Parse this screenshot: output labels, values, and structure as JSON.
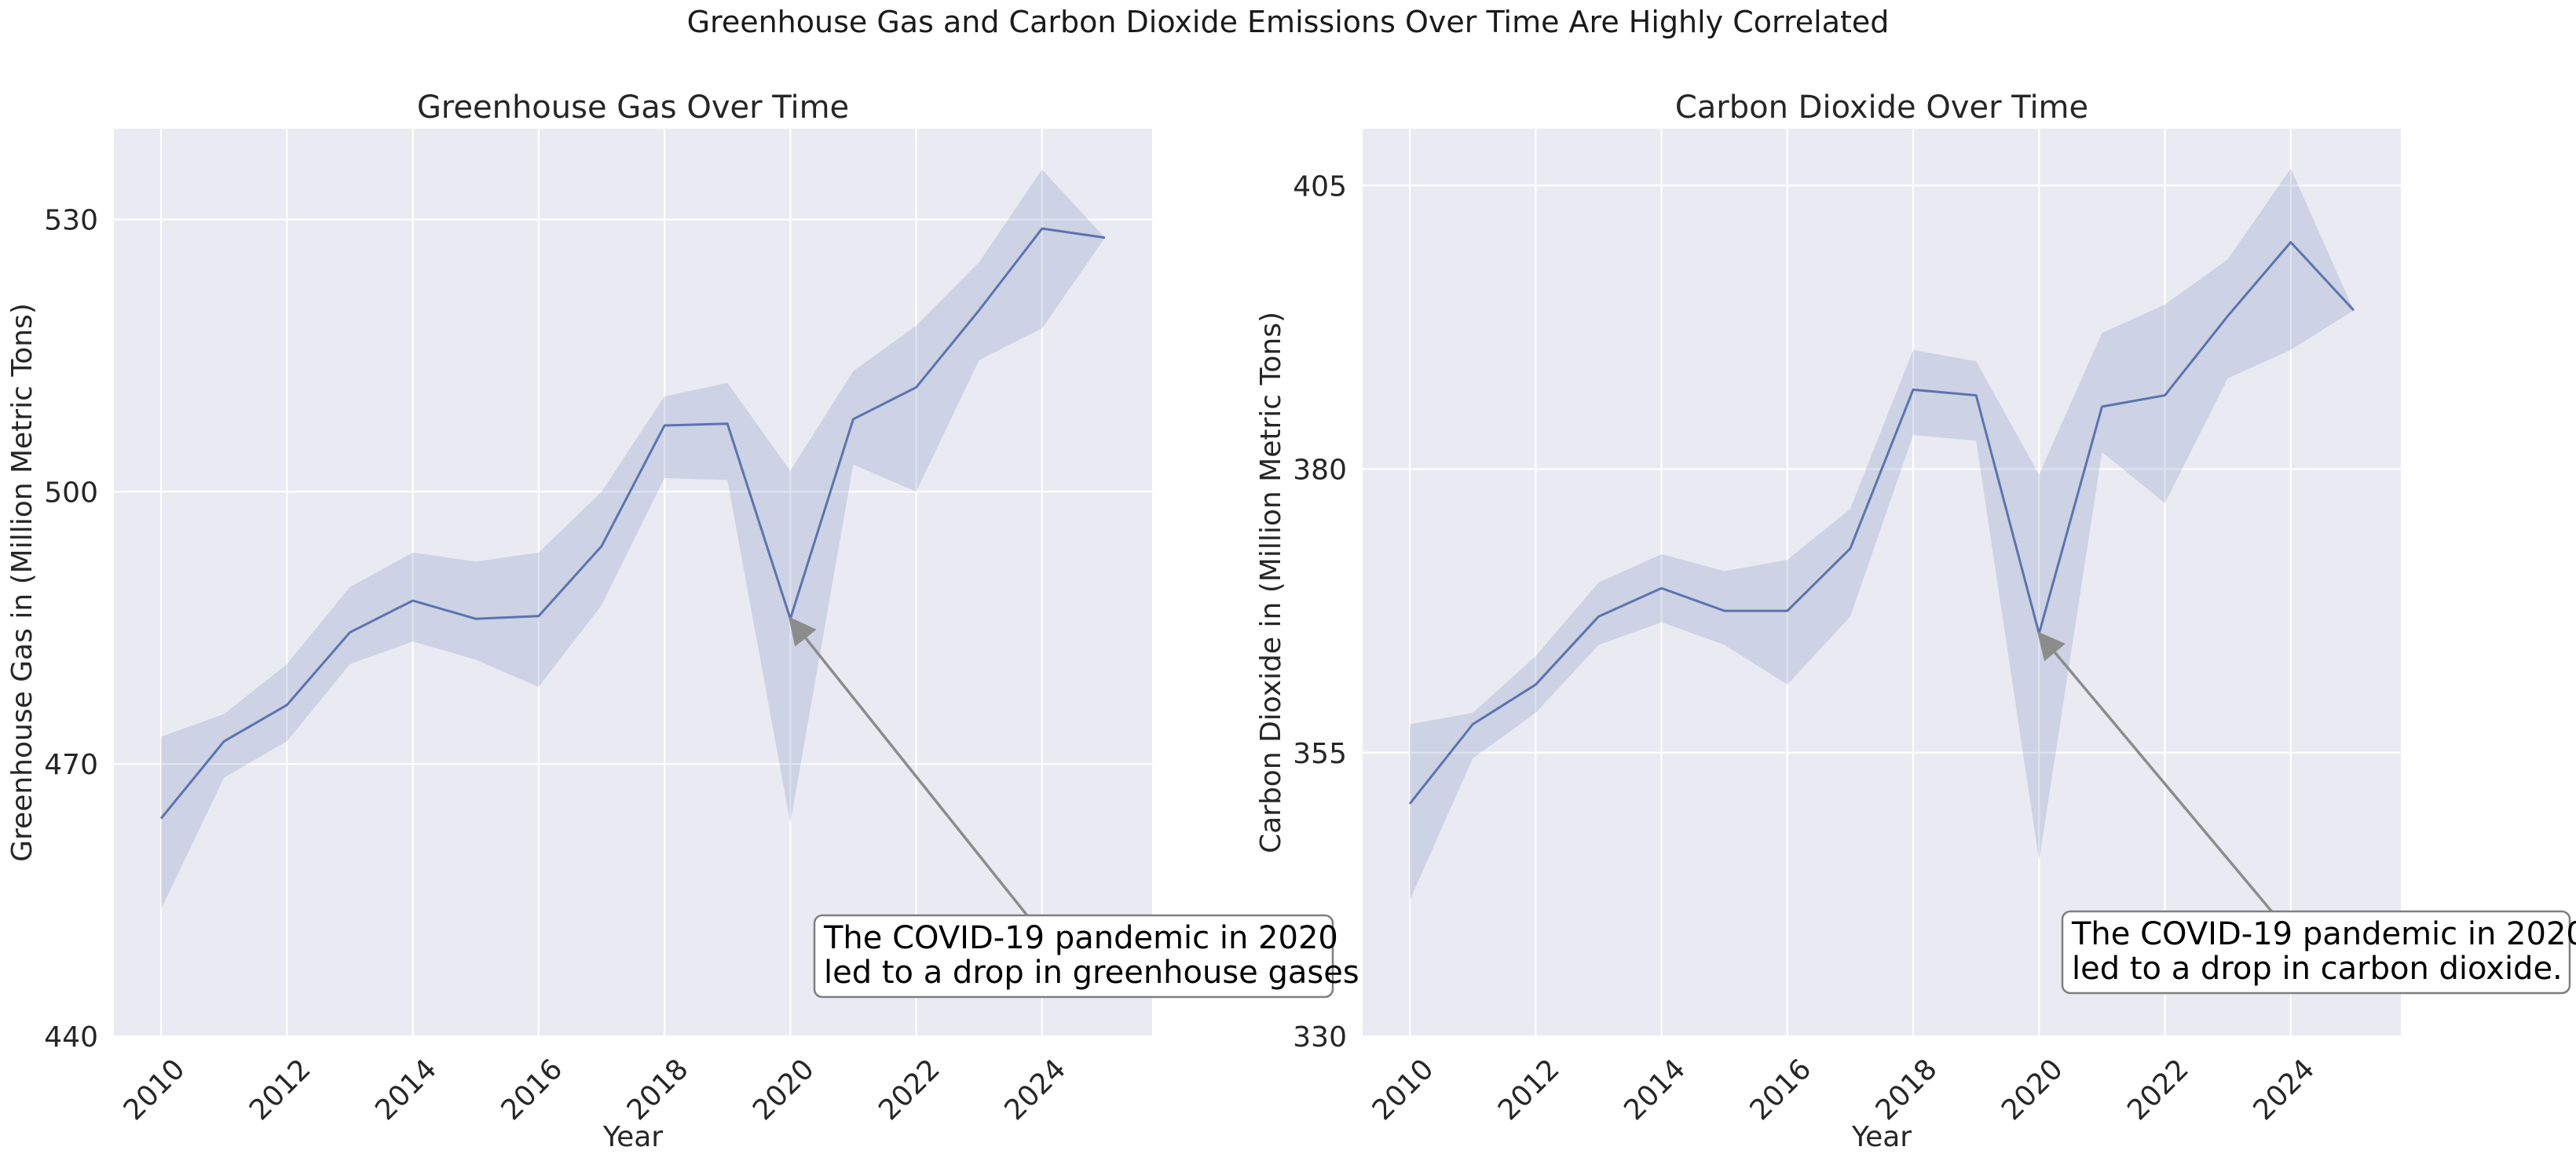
{
  "figure": {
    "suptitle": "Greenhouse Gas and Carbon Dioxide Emissions Over Time Are Highly Correlated"
  },
  "colors": {
    "plot_background": "#eaeaf2",
    "grid": "#ffffff",
    "line": "#5b74b0",
    "band": "#5b74b0",
    "arrow": "#8c8c8c",
    "annotation_border": "#7f7f7f",
    "text": "#262626"
  },
  "chart_data": [
    {
      "type": "line",
      "title": "Greenhouse Gas Over Time",
      "xlabel": "Year",
      "ylabel": "Greenhouse Gas in (Million Metric Tons)",
      "xlim": [
        2009.25,
        2025.75
      ],
      "ylim": [
        440,
        540
      ],
      "xticks": [
        2010,
        2012,
        2014,
        2016,
        2018,
        2020,
        2022,
        2024
      ],
      "yticks": [
        440,
        470,
        500,
        530
      ],
      "grid": true,
      "x": [
        2010,
        2011,
        2012,
        2013,
        2014,
        2015,
        2016,
        2017,
        2018,
        2019,
        2020,
        2021,
        2022,
        2023,
        2024,
        2025
      ],
      "series": [
        {
          "values": [
            464.0,
            472.5,
            476.5,
            484.5,
            488.0,
            486.0,
            486.3,
            494.0,
            507.3,
            507.5,
            486.0,
            508.0,
            511.5,
            520.0,
            529.0,
            528.0
          ],
          "ci_lower": [
            454.0,
            468.5,
            472.5,
            481.0,
            483.5,
            481.5,
            478.5,
            487.5,
            501.5,
            501.3,
            463.5,
            503.0,
            500.0,
            514.5,
            518.0,
            528.0
          ],
          "ci_upper": [
            473.0,
            475.5,
            481.0,
            489.5,
            493.3,
            492.3,
            493.3,
            500.0,
            510.5,
            512.0,
            502.3,
            513.3,
            518.3,
            525.3,
            535.5,
            528.0
          ]
        }
      ],
      "annotation": {
        "text_lines": [
          "The COVID-19 pandemic in 2020",
          "led to a drop in greenhouse gases."
        ],
        "point": [
          2020,
          486.0
        ],
        "text_anchor": [
          2023.8,
          453.0
        ]
      }
    },
    {
      "type": "line",
      "title": "Carbon Dioxide Over Time",
      "xlabel": "Year",
      "ylabel": "Carbon Dioxide in (Million Metric Tons)",
      "xlim": [
        2009.25,
        2025.75
      ],
      "ylim": [
        330,
        410
      ],
      "xticks": [
        2010,
        2012,
        2014,
        2016,
        2018,
        2020,
        2022,
        2024
      ],
      "yticks": [
        330,
        355,
        380,
        405
      ],
      "grid": true,
      "x": [
        2010,
        2011,
        2012,
        2013,
        2014,
        2015,
        2016,
        2017,
        2018,
        2019,
        2020,
        2021,
        2022,
        2023,
        2024,
        2025
      ],
      "series": [
        {
          "values": [
            350.5,
            357.5,
            361.0,
            367.0,
            369.5,
            367.5,
            367.5,
            373.0,
            387.0,
            386.5,
            365.5,
            385.5,
            386.5,
            393.5,
            400.0,
            394.0
          ],
          "ci_lower": [
            342.0,
            354.5,
            358.5,
            364.5,
            366.5,
            364.5,
            361.0,
            367.0,
            383.0,
            382.5,
            345.5,
            381.5,
            377.0,
            388.0,
            390.5,
            394.0
          ],
          "ci_upper": [
            357.5,
            358.5,
            363.5,
            370.0,
            372.5,
            371.0,
            372.0,
            376.5,
            390.5,
            389.5,
            379.5,
            392.0,
            394.5,
            398.5,
            406.5,
            394.0
          ]
        }
      ],
      "annotation": {
        "text_lines": [
          "The COVID-19 pandemic in 2020",
          "led to a drop in carbon dioxide."
        ],
        "point": [
          2020,
          365.5
        ],
        "text_anchor": [
          2024.0,
          339.0
        ]
      }
    }
  ]
}
